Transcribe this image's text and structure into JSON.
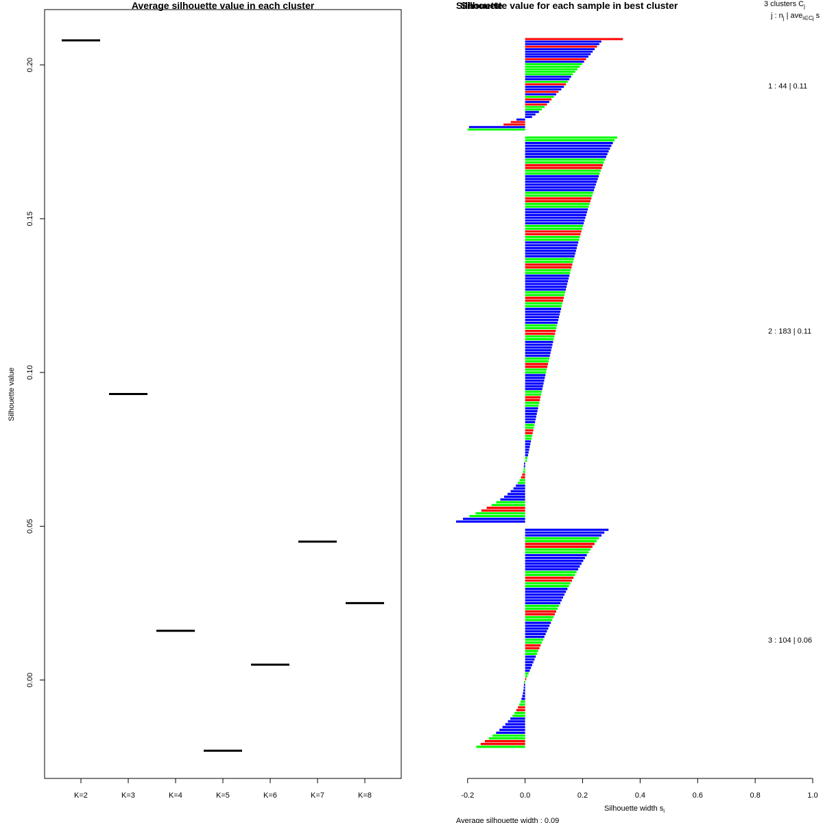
{
  "chart_data": [
    {
      "type": "line",
      "title": "Average silhouette value in each cluster",
      "xlabel": "",
      "ylabel": "Silhouette value",
      "categories": [
        "K=2",
        "K=3",
        "K=4",
        "K=5",
        "K=6",
        "K=7",
        "K=8"
      ],
      "values": [
        0.208,
        0.093,
        0.016,
        -0.023,
        0.005,
        0.045,
        0.025
      ],
      "yticks": [
        "0.00",
        "0.05",
        "0.10",
        "0.15",
        "0.20"
      ],
      "ytick_values": [
        0.0,
        0.05,
        0.1,
        0.15,
        0.2
      ],
      "ylim": [
        -0.032,
        0.218
      ]
    },
    {
      "type": "bar",
      "title": "Silhouette value for each sample in best cluster",
      "overlap_title": "Silhouette",
      "xlabel": "Silhouette width s",
      "xlabel_sub": "i",
      "xticks": [
        "-0.2",
        "0.0",
        "0.2",
        "0.4",
        "0.6",
        "0.8",
        "1.0"
      ],
      "xtick_values": [
        -0.2,
        0.0,
        0.2,
        0.4,
        0.6,
        0.8,
        1.0
      ],
      "xlim": [
        -0.24,
        1.0
      ],
      "header_line1": "3  clusters  C",
      "header_line1_sub": "j",
      "header_line2": "j :  n",
      "header_line2_sub": "j",
      "header_line2_rest": " | ave",
      "header_line2_sub2": "i∈Cj",
      "header_line2_end": "  s",
      "footer": "Average silhouette width : 0.09",
      "colors": {
        "red": "#ff0000",
        "green": "#00ff00",
        "blue": "#0000ff"
      },
      "clusters": [
        {
          "j": 1,
          "n": 44,
          "ave": "0.11",
          "label": "1 :   44  |  0.11",
          "pos": [
            0.34,
            0.265,
            0.258,
            0.25,
            0.242,
            0.235,
            0.228,
            0.22,
            0.212,
            0.205,
            0.198,
            0.19,
            0.182,
            0.174,
            0.166,
            0.16,
            0.154,
            0.148,
            0.142,
            0.135,
            0.126,
            0.116,
            0.108,
            0.1,
            0.092,
            0.084,
            0.076,
            0.068,
            0.058,
            0.048,
            0.036,
            0.024
          ],
          "neg": [
            -0.03,
            -0.05,
            -0.075,
            -0.195,
            -0.2
          ],
          "pos_colors": [
            "red",
            "blue",
            "blue",
            "red",
            "blue",
            "blue",
            "blue",
            "blue",
            "red",
            "blue",
            "green",
            "green",
            "green",
            "green",
            "green",
            "blue",
            "blue",
            "green",
            "red",
            "blue",
            "blue",
            "red",
            "blue",
            "green",
            "red",
            "blue",
            "red",
            "green",
            "green",
            "blue",
            "blue",
            "blue"
          ],
          "neg_colors": [
            "blue",
            "red",
            "red",
            "blue",
            "green"
          ]
        },
        {
          "j": 2,
          "n": 183,
          "ave": "0.11",
          "label": "2 :   183  |  0.11",
          "pos_max": 0.32,
          "pos_min": 0.006,
          "pos_count": 118,
          "neg_max": -0.24,
          "neg_min": -0.004,
          "neg_count": 22
        },
        {
          "j": 3,
          "n": 104,
          "ave": "0.06",
          "label": "3 :   104  |  0.06",
          "pos_max": 0.29,
          "pos_min": 0.004,
          "pos_count": 54,
          "neg_max": -0.17,
          "neg_min": -0.004,
          "neg_count": 24
        }
      ]
    }
  ]
}
